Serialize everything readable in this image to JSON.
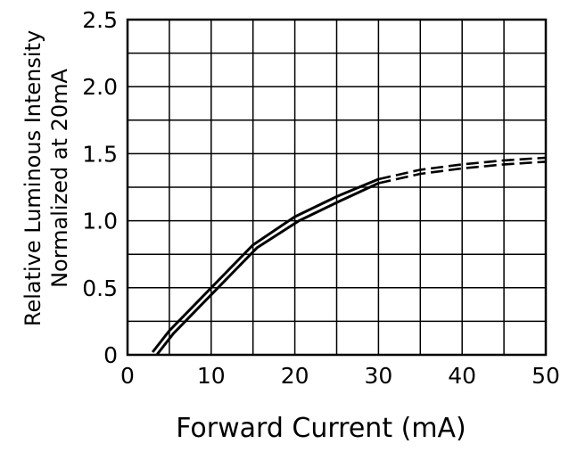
{
  "chart_data": {
    "type": "line",
    "xlabel": "Forward Current (mA)",
    "ylabel": [
      "Relative Luminous Intensity",
      "Normalized at 20mA"
    ],
    "xlim": [
      0,
      50
    ],
    "ylim": [
      0,
      2.5
    ],
    "x_ticks": [
      "0",
      "10",
      "20",
      "30",
      "40",
      "50"
    ],
    "y_ticks": [
      "0",
      "0.5",
      "1.0",
      "1.5",
      "2.0",
      "2.5"
    ],
    "grid": true,
    "series": [
      {
        "style": "solid",
        "x": [
          3,
          5,
          10,
          15,
          20,
          25,
          30
        ],
        "y": [
          0.02,
          0.18,
          0.5,
          0.82,
          1.03,
          1.18,
          1.31
        ]
      },
      {
        "style": "solid",
        "x": [
          3.5,
          5.5,
          10.5,
          15.5,
          20.5,
          25.5,
          30
        ],
        "y": [
          0.0,
          0.16,
          0.48,
          0.8,
          1.0,
          1.15,
          1.28
        ]
      },
      {
        "style": "dashed",
        "x": [
          30,
          35,
          40,
          45,
          50
        ],
        "y": [
          1.31,
          1.38,
          1.42,
          1.45,
          1.47
        ]
      },
      {
        "style": "dashed",
        "x": [
          30,
          35,
          40,
          45,
          50
        ],
        "y": [
          1.28,
          1.35,
          1.39,
          1.42,
          1.44
        ]
      }
    ]
  }
}
